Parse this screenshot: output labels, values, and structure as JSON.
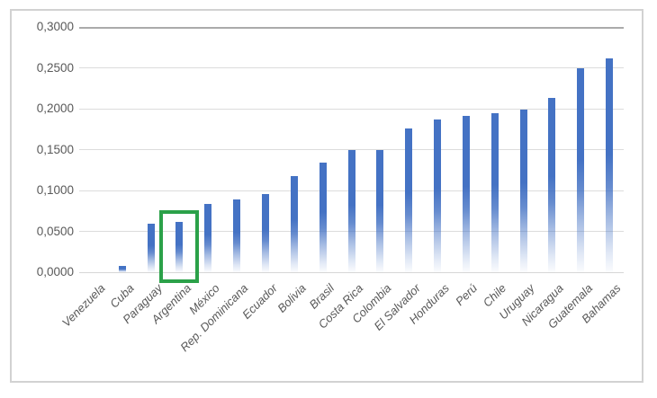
{
  "chart_data": {
    "type": "bar",
    "title": "",
    "categories": [
      "Venezuela",
      "Cuba",
      "Paraguay",
      "Argentina",
      "México",
      "Rep. Dominicana",
      "Ecuador",
      "Bolivia",
      "Brasil",
      "Costa Rica",
      "Colombia",
      "El Salvador",
      "Honduras",
      "Perú",
      "Chile",
      "Uruguay",
      "Nicaragua",
      "Guatemala",
      "Bahamas"
    ],
    "values": [
      0.0,
      0.008,
      0.059,
      0.061,
      0.083,
      0.089,
      0.096,
      0.118,
      0.134,
      0.149,
      0.149,
      0.176,
      0.187,
      0.191,
      0.195,
      0.199,
      0.213,
      0.25,
      0.262
    ],
    "xlabel": "",
    "ylabel": "",
    "ylim": [
      0,
      0.3
    ],
    "ytick_labels": [
      "0,0000",
      "0,0500",
      "0,1000",
      "0,1500",
      "0,2000",
      "0,2500",
      "0,3000"
    ],
    "ytick_values": [
      0,
      0.05,
      0.1,
      0.15,
      0.2,
      0.25,
      0.3
    ],
    "number_format": "comma-decimal",
    "grid": true,
    "legend": false,
    "bar_fill": "gradient-fade-to-white-at-bottom",
    "colors": {
      "bar": "#4472C4",
      "gridline": "#DCDCDC",
      "top_gridline": "#ABABAB",
      "baseline": "#D6D6D6",
      "axis_text": "#595959",
      "frame_border": "#D2D2D2",
      "highlight_box": "#2BA149"
    },
    "highlight": {
      "category": "Argentina",
      "style": "green-rectangle-outline"
    }
  }
}
